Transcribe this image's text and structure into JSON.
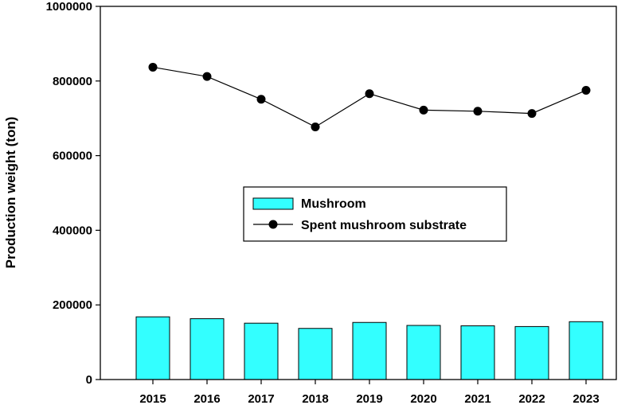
{
  "chart_data": {
    "type": "bar",
    "title": "",
    "xlabel": "",
    "ylabel": "Production weight (ton)",
    "ylim": [
      0,
      1000000
    ],
    "yticks": [
      "0",
      "200000",
      "400000",
      "600000",
      "800000",
      "1000000"
    ],
    "categories": [
      "2015",
      "2016",
      "2017",
      "2018",
      "2019",
      "2020",
      "2021",
      "2022",
      "2023"
    ],
    "grid": false,
    "legend_position": "center",
    "series": [
      {
        "name": "Mushroom",
        "type": "bar",
        "color": "#33ffff",
        "values": [
          168000,
          163000,
          151000,
          137000,
          153000,
          145000,
          144000,
          142000,
          155000
        ]
      },
      {
        "name": "Spent mushroom substrate",
        "type": "line",
        "color": "#000000",
        "marker": "circle",
        "values": [
          837000,
          812000,
          751000,
          677000,
          766000,
          722000,
          719000,
          713000,
          775000
        ]
      }
    ]
  }
}
